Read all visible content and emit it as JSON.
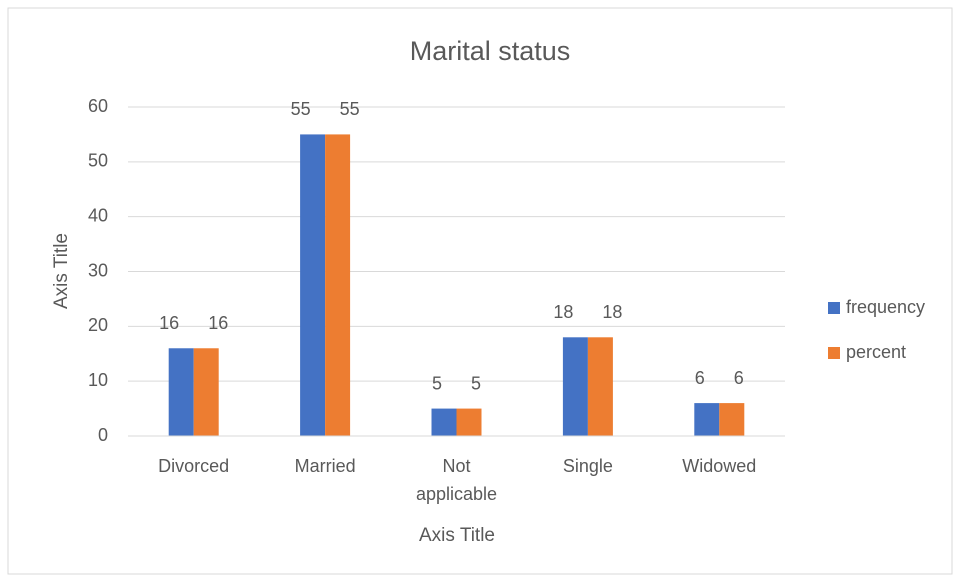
{
  "chart_data": {
    "type": "bar",
    "title": "Marital status",
    "x_label": "Axis Title",
    "y_label": "Axis Title",
    "categories": [
      "Divorced",
      "Married",
      "Not applicable",
      "Single",
      "Widowed"
    ],
    "series": [
      {
        "name": "frequency",
        "color": "#4472c4",
        "values": [
          16,
          55,
          5,
          18,
          6
        ]
      },
      {
        "name": "percent",
        "color": "#ed7d31",
        "values": [
          16,
          55,
          5,
          18,
          6
        ]
      }
    ],
    "ylim": [
      0,
      60
    ],
    "yticks": [
      0,
      10,
      20,
      30,
      40,
      50,
      60
    ],
    "grid": true,
    "legend": "right"
  }
}
